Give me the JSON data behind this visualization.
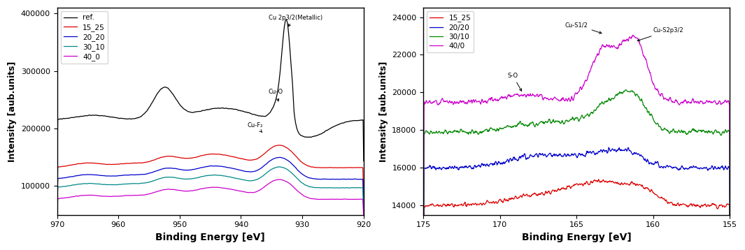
{
  "left": {
    "xlabel": "Binding Energy [eV]",
    "ylabel": "Intensity [aub.units]",
    "xlim": [
      970,
      920
    ],
    "ylim": [
      50000,
      410000
    ],
    "yticks": [
      100000,
      200000,
      300000,
      400000
    ],
    "xticks": [
      970,
      960,
      950,
      940,
      930,
      920
    ],
    "legend_labels": [
      "ref.",
      "15_25",
      "20_20",
      "30_10",
      "40_0"
    ],
    "colors": [
      "black",
      "#dd0000",
      "#0000cc",
      "#008888",
      "#cc00cc"
    ]
  },
  "right": {
    "xlabel": "Binding Energy [eV]",
    "ylabel": "Intensity [aub.units]",
    "xlim": [
      175,
      155
    ],
    "ylim": [
      13500,
      24500
    ],
    "yticks": [
      14000,
      16000,
      18000,
      20000,
      22000,
      24000
    ],
    "xticks": [
      175,
      170,
      165,
      160,
      155
    ],
    "legend_labels": [
      "15_25",
      "20/20",
      "30/10",
      "40/0"
    ],
    "colors": [
      "#dd0000",
      "#0000cc",
      "#008800",
      "#cc00cc"
    ]
  }
}
